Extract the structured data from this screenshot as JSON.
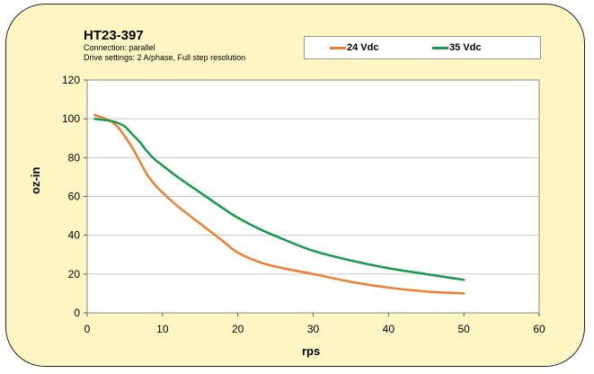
{
  "chart_data": {
    "type": "line",
    "title": "HT23-397",
    "subtitle": [
      "Connection: parallel",
      "Drive settings: 2 A/phase, Full step resolution"
    ],
    "xlabel": "rps",
    "ylabel": "oz-in",
    "xlim": [
      0,
      60
    ],
    "ylim": [
      0,
      120
    ],
    "xticks": [
      0,
      10,
      20,
      30,
      40,
      50,
      60
    ],
    "yticks": [
      0,
      20,
      40,
      60,
      80,
      100,
      120
    ],
    "grid": true,
    "legend_position": "top-right",
    "series": [
      {
        "name": "24 Vdc",
        "color": "#ee7d2d",
        "x": [
          1,
          3,
          4,
          5,
          6,
          7,
          8,
          9,
          10,
          12,
          15,
          18,
          20,
          23,
          26,
          30,
          35,
          40,
          45,
          50
        ],
        "y": [
          102,
          99,
          96,
          91,
          85,
          78,
          71,
          66,
          62,
          55,
          46,
          37,
          31,
          26,
          23,
          20,
          16,
          13,
          11,
          10
        ]
      },
      {
        "name": "35 Vdc",
        "color": "#169a4b",
        "x": [
          1,
          3,
          4,
          5,
          6,
          7,
          8,
          9,
          10,
          12,
          15,
          18,
          20,
          23,
          26,
          30,
          35,
          40,
          45,
          50
        ],
        "y": [
          100,
          99,
          98,
          96,
          92,
          88,
          83,
          79,
          76,
          70,
          62,
          54,
          49,
          43,
          38,
          32,
          27,
          23,
          20,
          17
        ]
      }
    ]
  }
}
